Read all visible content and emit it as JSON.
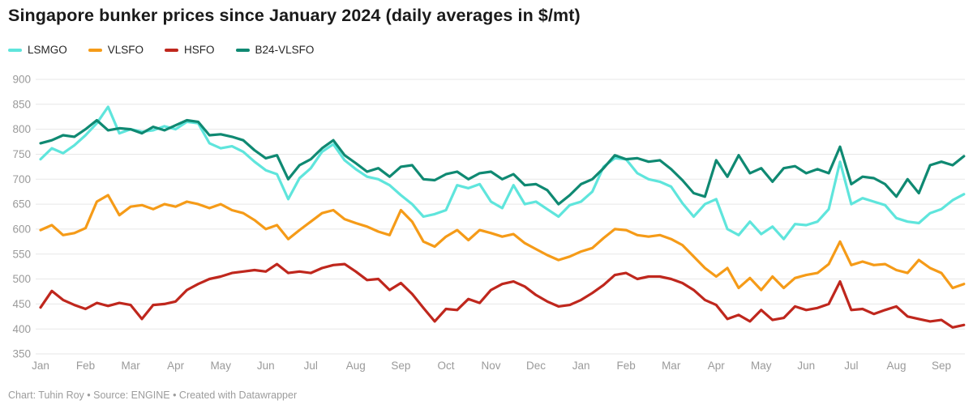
{
  "header": {
    "title": "Singapore bunker prices since January 2024 (daily averages in $/mt)"
  },
  "footer": {
    "text": "Chart: Tuhin Roy • Source: ENGINE • Created with Datawrapper"
  },
  "chart_data": {
    "type": "line",
    "title": "Singapore bunker prices since January 2024 (daily averages in $/mt)",
    "unit": "$/mt",
    "xlabel": "",
    "ylabel": "",
    "ylim": [
      350,
      900
    ],
    "y_ticks": [
      900,
      850,
      800,
      750,
      700,
      650,
      600,
      550,
      500,
      450,
      400,
      350
    ],
    "grid": "horizontal",
    "legend_position": "top-left",
    "x_tick_labels": [
      "Jan",
      "Feb",
      "Mar",
      "Apr",
      "May",
      "Jun",
      "Jul",
      "Aug",
      "Sep",
      "Oct",
      "Nov",
      "Dec",
      "Jan",
      "Feb",
      "Mar",
      "Apr",
      "May",
      "Jun",
      "Jul",
      "Aug",
      "Sep"
    ],
    "x_start": 0,
    "x_step": 0.25,
    "x_note": "x in months after Jan 2024; series sampled about weekly from daily data",
    "series": [
      {
        "name": "LSMGO",
        "color": "#5FE5DC",
        "values": [
          740,
          762,
          752,
          768,
          788,
          812,
          845,
          792,
          800,
          795,
          798,
          806,
          800,
          815,
          812,
          772,
          762,
          766,
          755,
          735,
          718,
          710,
          660,
          702,
          722,
          755,
          770,
          738,
          720,
          705,
          700,
          688,
          668,
          650,
          625,
          630,
          638,
          688,
          682,
          690,
          655,
          642,
          688,
          650,
          655,
          640,
          625,
          648,
          655,
          675,
          725,
          742,
          740,
          712,
          700,
          695,
          685,
          652,
          625,
          650,
          660,
          600,
          588,
          615,
          590,
          605,
          580,
          610,
          608,
          615,
          640,
          735,
          650,
          662,
          655,
          648,
          622,
          615,
          612,
          632,
          640,
          658,
          670
        ]
      },
      {
        "name": "VLSFO",
        "color": "#F59B18",
        "values": [
          598,
          608,
          588,
          592,
          602,
          655,
          668,
          628,
          645,
          648,
          640,
          650,
          645,
          655,
          650,
          642,
          650,
          638,
          632,
          618,
          600,
          608,
          580,
          598,
          615,
          632,
          638,
          620,
          612,
          605,
          595,
          588,
          638,
          615,
          575,
          565,
          585,
          598,
          578,
          598,
          592,
          585,
          590,
          572,
          560,
          548,
          538,
          545,
          555,
          562,
          582,
          600,
          598,
          588,
          585,
          588,
          580,
          568,
          545,
          522,
          505,
          522,
          482,
          502,
          478,
          505,
          482,
          502,
          508,
          512,
          530,
          575,
          528,
          535,
          528,
          530,
          518,
          512,
          538,
          522,
          512,
          482,
          490
        ]
      },
      {
        "name": "HSFO",
        "color": "#BF271D",
        "values": [
          443,
          476,
          458,
          448,
          440,
          452,
          446,
          452,
          448,
          420,
          448,
          450,
          455,
          478,
          490,
          500,
          505,
          512,
          515,
          518,
          515,
          530,
          512,
          515,
          512,
          522,
          528,
          530,
          515,
          498,
          500,
          478,
          492,
          470,
          442,
          415,
          440,
          438,
          460,
          452,
          478,
          490,
          495,
          485,
          468,
          455,
          445,
          448,
          458,
          472,
          488,
          508,
          512,
          500,
          505,
          505,
          500,
          492,
          478,
          458,
          448,
          420,
          428,
          415,
          438,
          418,
          422,
          445,
          438,
          442,
          450,
          495,
          438,
          440,
          430,
          438,
          445,
          425,
          420,
          415,
          418,
          403,
          408
        ]
      },
      {
        "name": "B24-VLSFO",
        "color": "#0F8972",
        "values": [
          772,
          778,
          788,
          785,
          800,
          818,
          798,
          802,
          800,
          792,
          805,
          798,
          808,
          818,
          815,
          788,
          790,
          785,
          778,
          758,
          742,
          748,
          700,
          728,
          740,
          762,
          778,
          748,
          732,
          715,
          722,
          705,
          725,
          728,
          700,
          698,
          710,
          715,
          700,
          712,
          715,
          700,
          710,
          688,
          690,
          678,
          650,
          668,
          690,
          700,
          722,
          748,
          740,
          742,
          735,
          738,
          720,
          698,
          672,
          665,
          738,
          705,
          748,
          712,
          722,
          695,
          722,
          726,
          712,
          720,
          712,
          765,
          690,
          705,
          702,
          690,
          665,
          700,
          672,
          728,
          735,
          728,
          746
        ]
      }
    ]
  }
}
